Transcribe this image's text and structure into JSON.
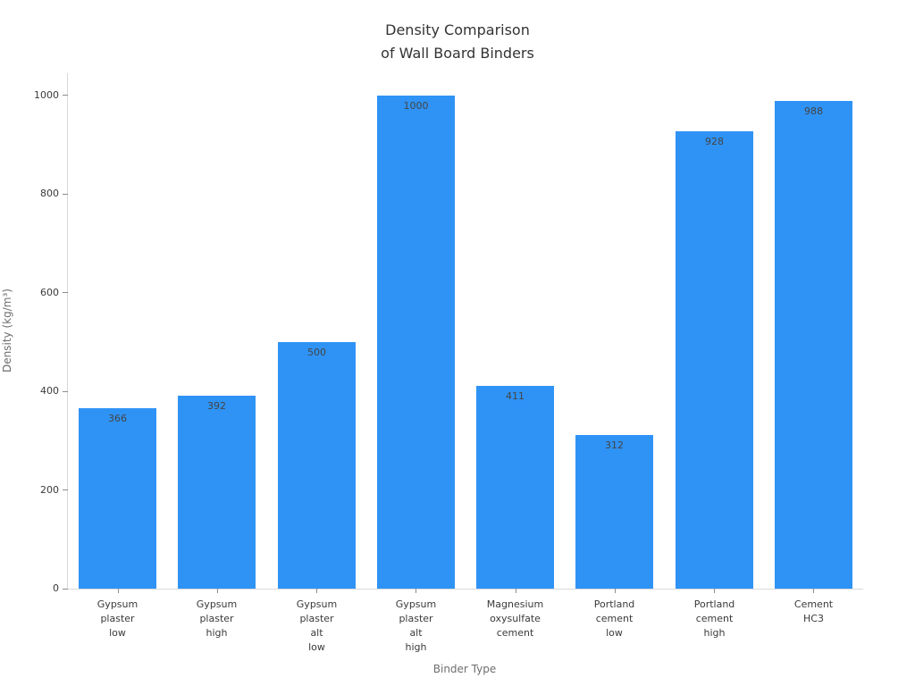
{
  "chart_data": {
    "type": "bar",
    "title_lines": [
      "Density Comparison",
      "of Wall Board Binders"
    ],
    "title": "Density Comparison\nof Wall Board Binders",
    "xlabel": "Binder Type",
    "ylabel": "Density (kg/m³)",
    "categories": [
      "Gypsum\nplaster\nlow",
      "Gypsum\nplaster\nhigh",
      "Gypsum\nplaster\nalt\nlow",
      "Gypsum\nplaster\nalt\nhigh",
      "Magnesium\noxysulfate\ncement",
      "Portland\ncement\nlow",
      "Portland\ncement\nhigh",
      "Cement\nHC3"
    ],
    "values": [
      366,
      392,
      500,
      1000,
      411,
      312,
      928,
      988
    ],
    "yticks": [
      0,
      200,
      400,
      600,
      800,
      1000
    ],
    "ylim": [
      0,
      1045
    ],
    "grid": false,
    "legend": false,
    "bar_color": "#2f93f5",
    "axis_line_color": "#d9d9d9",
    "tick_mark_color": "#8c8c8c",
    "tick_label_color": "#3a3a3a",
    "value_label_color": "#444444",
    "title_color": "#333333",
    "axis_title_color": "#6e6e6e"
  }
}
